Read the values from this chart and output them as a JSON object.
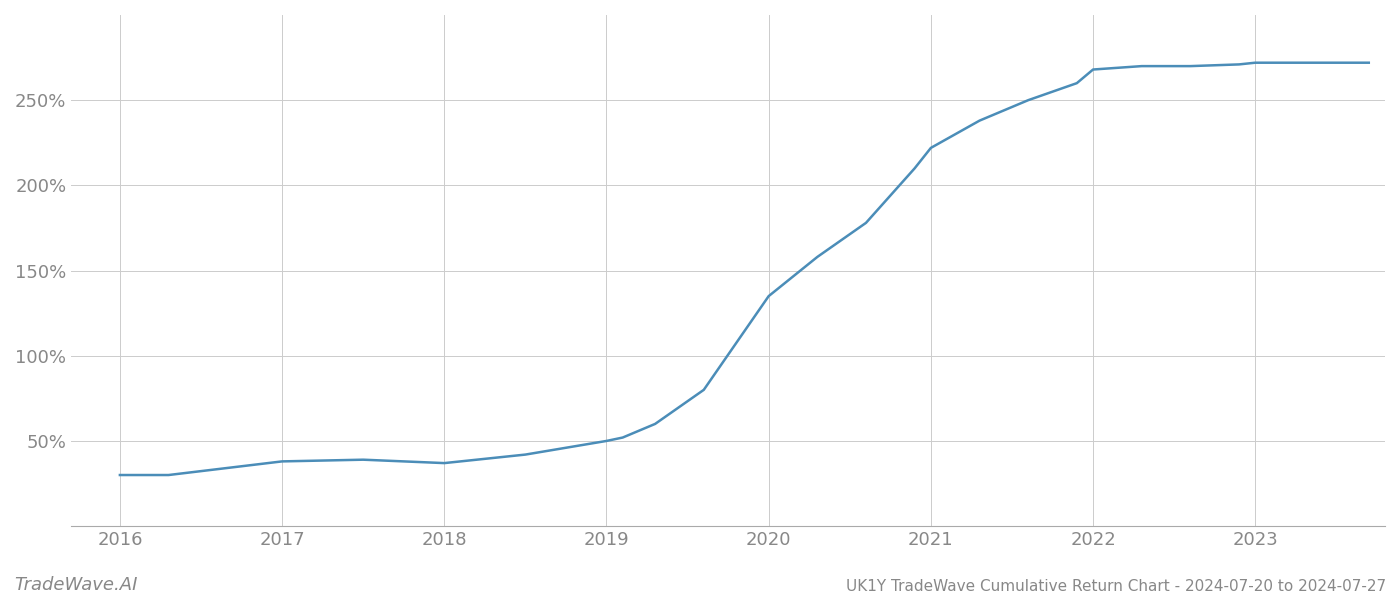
{
  "x_values": [
    2016.0,
    2016.3,
    2017.0,
    2017.5,
    2018.0,
    2018.5,
    2019.0,
    2019.1,
    2019.3,
    2019.6,
    2020.0,
    2020.3,
    2020.6,
    2020.9,
    2021.0,
    2021.3,
    2021.6,
    2021.9,
    2022.0,
    2022.3,
    2022.6,
    2022.9,
    2023.0,
    2023.3,
    2023.7
  ],
  "y_values": [
    30,
    30,
    38,
    39,
    37,
    42,
    50,
    52,
    60,
    80,
    135,
    158,
    178,
    210,
    222,
    238,
    250,
    260,
    268,
    270,
    270,
    271,
    272,
    272,
    272
  ],
  "line_color": "#4b8db8",
  "background_color": "#ffffff",
  "grid_color": "#cccccc",
  "tick_color": "#888888",
  "title": "UK1Y TradeWave Cumulative Return Chart - 2024-07-20 to 2024-07-27",
  "watermark": "TradeWave.AI",
  "yticks": [
    50,
    100,
    150,
    200,
    250
  ],
  "xticks": [
    2016,
    2017,
    2018,
    2019,
    2020,
    2021,
    2022,
    2023
  ],
  "ylim": [
    0,
    300
  ],
  "xlim": [
    2015.7,
    2023.8
  ],
  "line_width": 1.8,
  "tick_fontsize": 13,
  "title_fontsize": 11,
  "watermark_fontsize": 13
}
